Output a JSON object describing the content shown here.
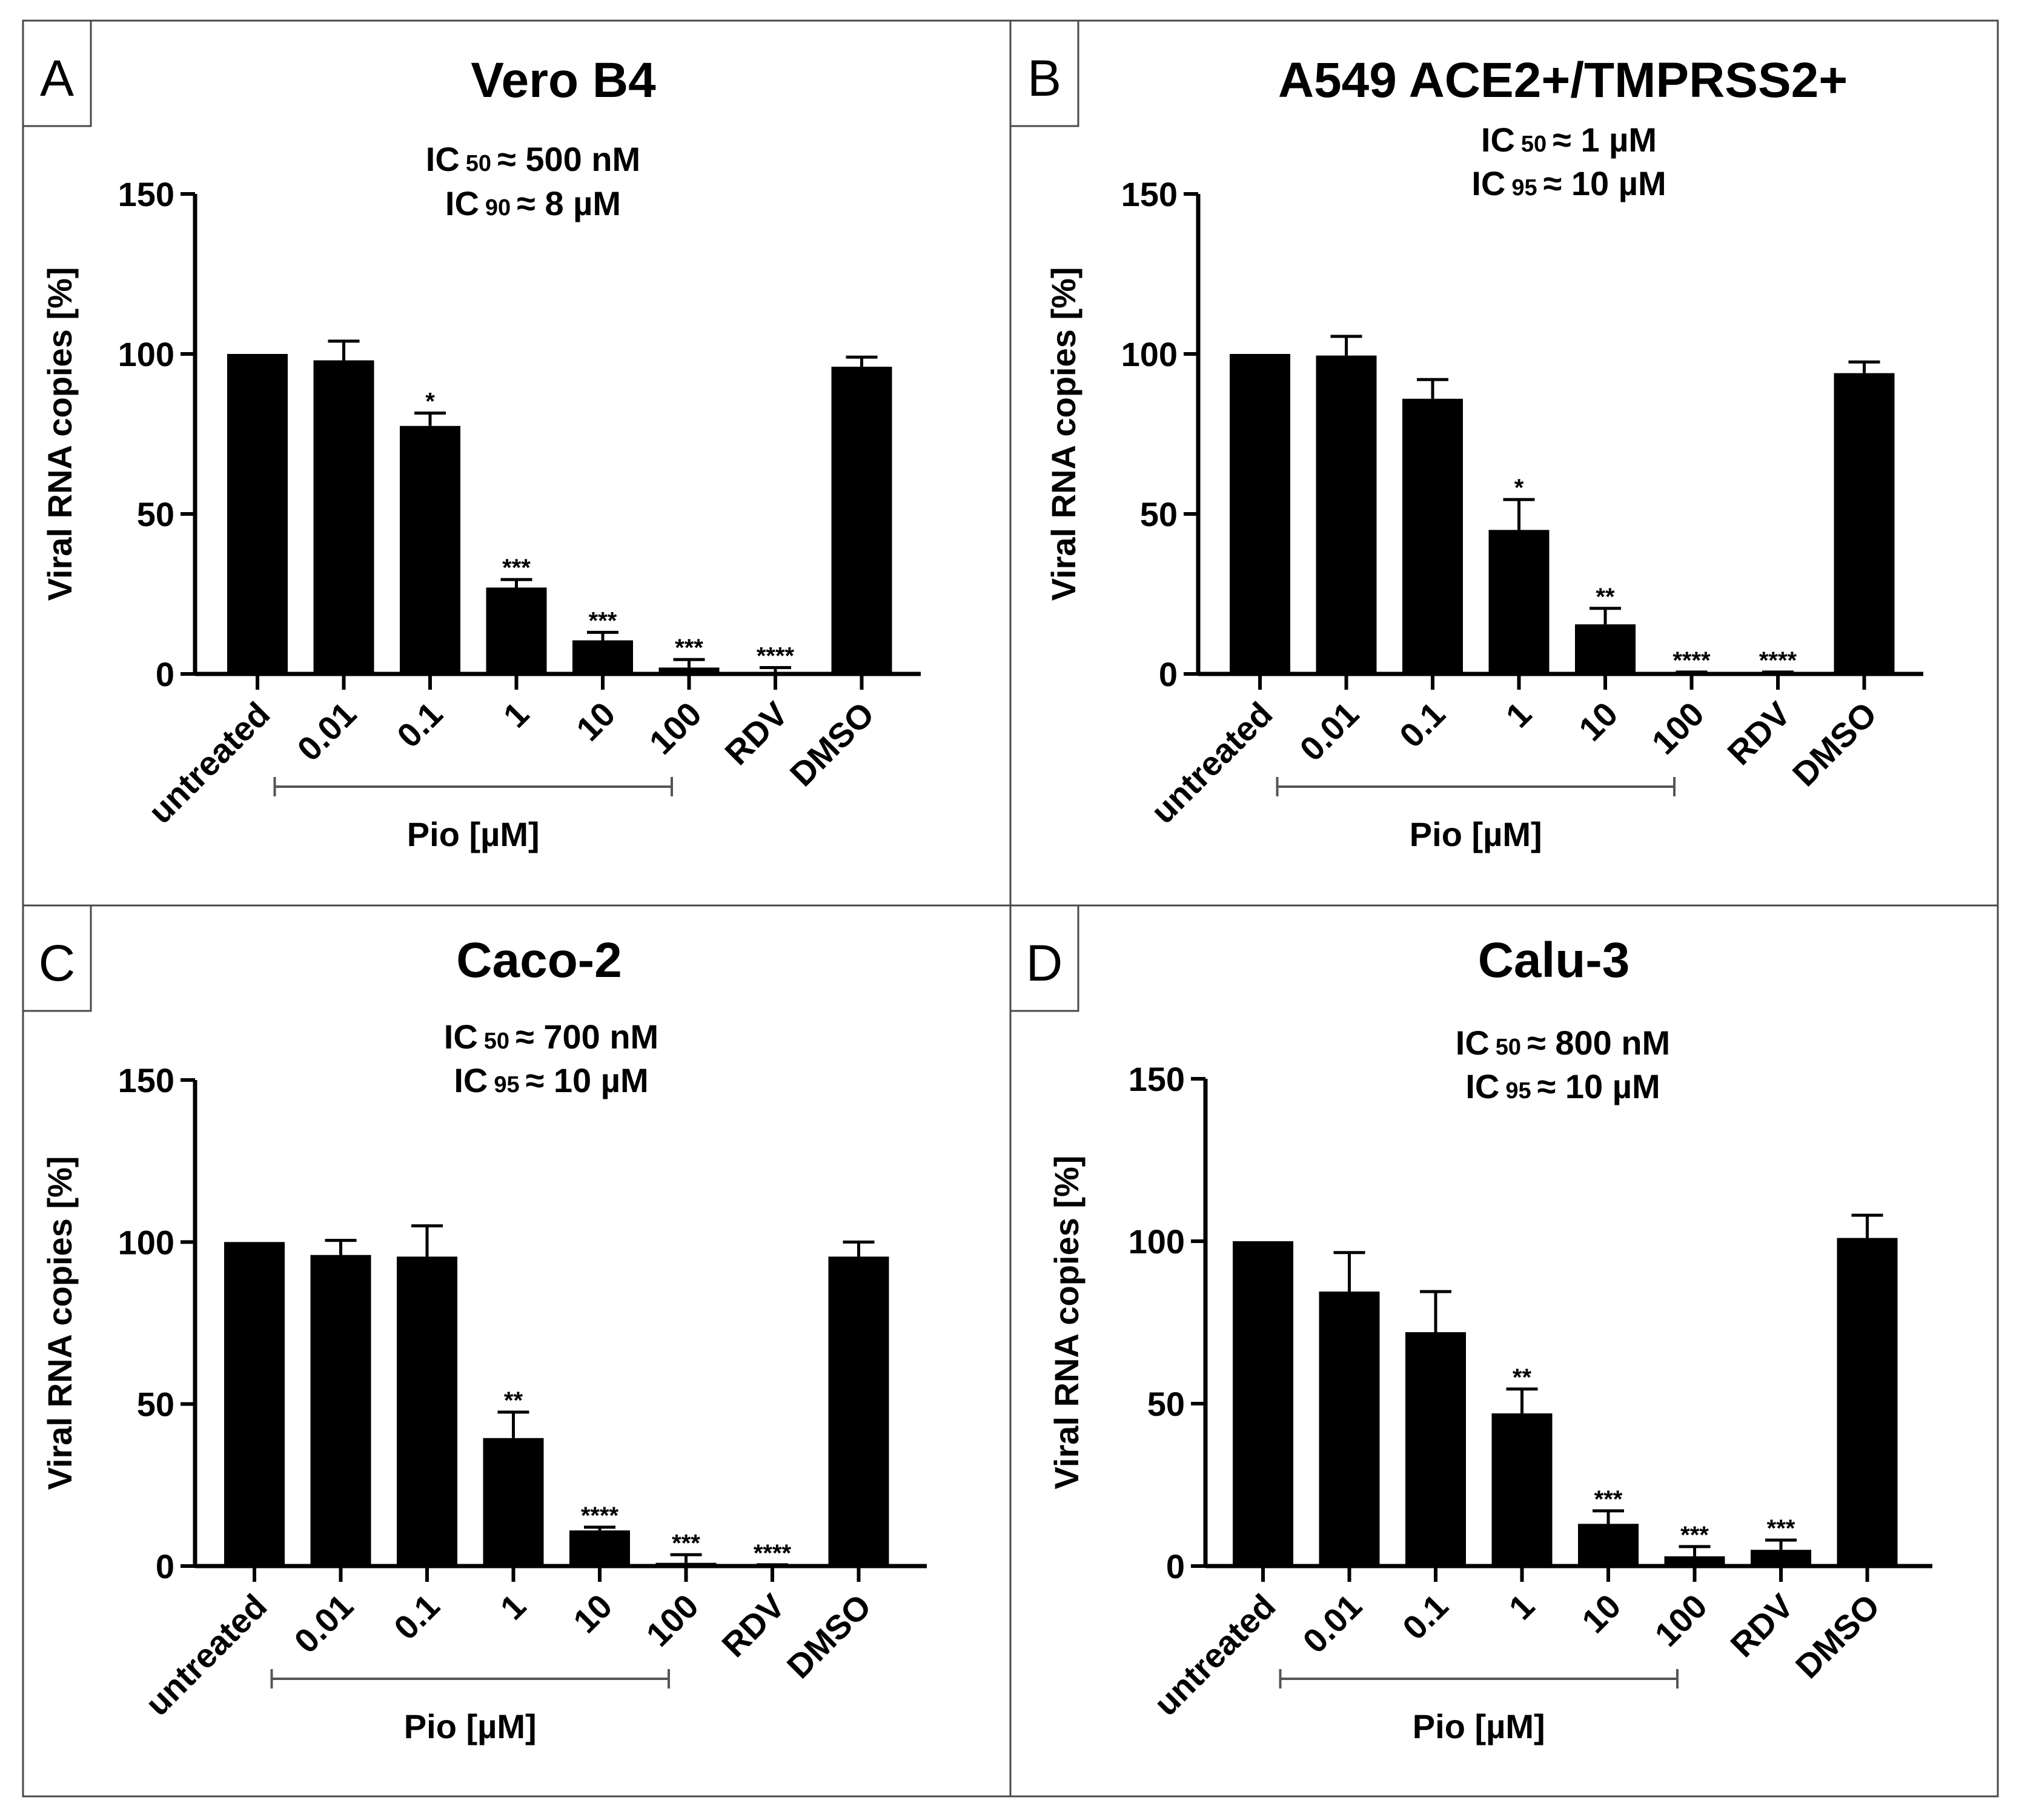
{
  "chart_data": [
    {
      "type": "bar",
      "panel_letter": "A",
      "title": "Vero B4",
      "ic_lines": [
        {
          "prefix": "IC",
          "sub": "50",
          "suffix": "≈ 500 nM"
        },
        {
          "prefix": "IC",
          "sub": "90",
          "suffix": "≈ 8 µM"
        }
      ],
      "ylabel": "Viral RNA copies [%]",
      "ylim": [
        0,
        150
      ],
      "yticks": [
        0,
        50,
        100,
        150
      ],
      "categories": [
        "untreated",
        "0.01",
        "0.1",
        "1",
        "10",
        "100",
        "RDV",
        "DMSO"
      ],
      "values": [
        100,
        98,
        77.5,
        27,
        10.5,
        2,
        0.5,
        96
      ],
      "errors": [
        0,
        6,
        4,
        2.5,
        2.5,
        2.5,
        1.5,
        3
      ],
      "significance": [
        "",
        "",
        "*",
        "***",
        "***",
        "***",
        "****",
        ""
      ],
      "group_label": "Pio [µM]"
    },
    {
      "type": "bar",
      "panel_letter": "B",
      "title": "A549 ACE2+/TMPRSS2+",
      "ic_lines": [
        {
          "prefix": "IC",
          "sub": "50",
          "suffix": "≈ 1 µM"
        },
        {
          "prefix": "IC",
          "sub": "95",
          "suffix": "≈ 10 µM"
        }
      ],
      "ylabel": "Viral RNA copies [%]",
      "ylim": [
        0,
        150
      ],
      "yticks": [
        0,
        50,
        100,
        150
      ],
      "categories": [
        "untreated",
        "0.01",
        "0.1",
        "1",
        "10",
        "100",
        "RDV",
        "DMSO"
      ],
      "values": [
        100,
        99.5,
        86,
        45,
        15.5,
        0.3,
        0.3,
        94
      ],
      "errors": [
        0,
        6,
        6,
        9.5,
        5,
        0.3,
        0.3,
        3.5
      ],
      "significance": [
        "",
        "",
        "",
        "*",
        "**",
        "****",
        "****",
        ""
      ],
      "group_label": "Pio [µM]"
    },
    {
      "type": "bar",
      "panel_letter": "C",
      "title": "Caco-2",
      "ic_lines": [
        {
          "prefix": "IC",
          "sub": "50",
          "suffix": "≈ 700 nM"
        },
        {
          "prefix": "IC",
          "sub": "95",
          "suffix": "≈ 10 µM"
        }
      ],
      "ylabel": "Viral RNA copies [%]",
      "ylim": [
        0,
        150
      ],
      "yticks": [
        0,
        50,
        100,
        150
      ],
      "categories": [
        "untreated",
        "0.01",
        "0.1",
        "1",
        "10",
        "100",
        "RDV",
        "DMSO"
      ],
      "values": [
        100,
        96,
        95.5,
        39.5,
        11,
        1,
        0.2,
        95.5
      ],
      "errors": [
        0,
        4.5,
        9.5,
        8,
        1,
        2.5,
        0.2,
        4.5
      ],
      "significance": [
        "",
        "",
        "",
        "**",
        "****",
        "***",
        "****",
        ""
      ],
      "group_label": "Pio [µM]"
    },
    {
      "type": "bar",
      "panel_letter": "D",
      "title": "Calu-3",
      "ic_lines": [
        {
          "prefix": "IC",
          "sub": "50",
          "suffix": "≈ 800 nM"
        },
        {
          "prefix": "IC",
          "sub": "95",
          "suffix": "≈ 10 µM"
        }
      ],
      "ylabel": "Viral RNA copies [%]",
      "ylim": [
        0,
        150
      ],
      "yticks": [
        0,
        50,
        100,
        150
      ],
      "categories": [
        "untreated",
        "0.01",
        "0.1",
        "1",
        "10",
        "100",
        "RDV",
        "DMSO"
      ],
      "values": [
        100,
        84.5,
        72,
        47,
        13,
        3,
        5,
        101
      ],
      "errors": [
        0,
        12,
        12.5,
        7.5,
        4,
        3,
        3,
        7
      ],
      "significance": [
        "",
        "",
        "",
        "**",
        "***",
        "***",
        "***",
        ""
      ],
      "group_label": "Pio [µM]"
    }
  ]
}
